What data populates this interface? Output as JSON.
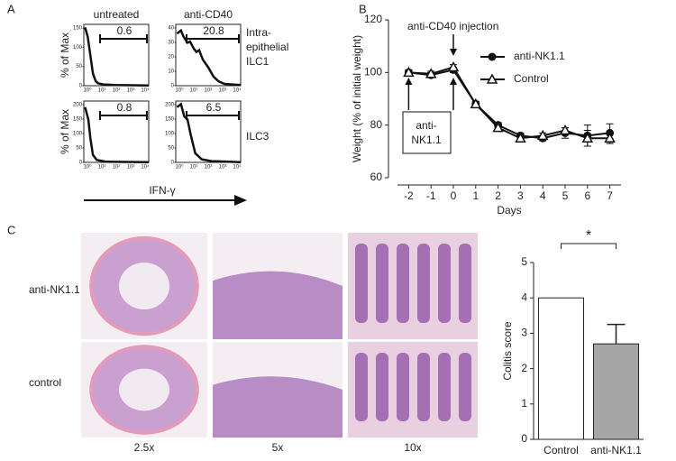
{
  "panel_labels": [
    "A",
    "B",
    "C"
  ],
  "panel_a": {
    "columns": [
      "untreated",
      "anti-CD40"
    ],
    "rows": [
      [
        "Intra-",
        "epithelial",
        "ILC1"
      ],
      [
        "ILC3"
      ]
    ],
    "y_label": "% of Max",
    "x_label": "IFN-γ",
    "gates": [
      [
        0.6,
        20.8
      ],
      [
        0.8,
        6.5
      ]
    ],
    "yticks": [
      [
        [
          0,
          50,
          100,
          150
        ],
        [
          0,
          10,
          20,
          30,
          40
        ]
      ],
      [
        [
          0,
          50,
          100,
          150,
          200
        ],
        [
          0,
          50,
          100,
          150,
          200
        ]
      ]
    ],
    "xticks": [
      "10⁰",
      "10¹",
      "10²",
      "10³",
      "10⁴"
    ]
  },
  "panel_c": {
    "rows": [
      "anti-NK1.1",
      "control"
    ],
    "magnifications": [
      "2.5x",
      "5x",
      "10x"
    ]
  },
  "chart_data": [
    {
      "type": "line",
      "x_label": "Days",
      "y_label": "Weight (% of initial weight)",
      "annotations": [
        "anti-CD40 injection",
        [
          "anti-",
          "NK1.1"
        ]
      ],
      "x": [
        -2,
        -1,
        0,
        1,
        2,
        3,
        4,
        5,
        6,
        7
      ],
      "series": [
        {
          "name": "anti-NK1.1",
          "color": "#111111",
          "marker": "circle",
          "values": [
            100,
            99,
            101,
            88,
            80,
            76,
            75,
            77,
            76,
            77
          ],
          "errors": [
            1,
            1,
            1,
            1,
            1,
            1,
            1,
            2,
            4,
            3.5
          ]
        },
        {
          "name": "Control",
          "color": "#111111",
          "marker": "open-triangle",
          "values": [
            100,
            99.5,
            102,
            88,
            79,
            75,
            76,
            78,
            75,
            75
          ],
          "errors": [
            1,
            1,
            1,
            1,
            1,
            1,
            1,
            1,
            3,
            2
          ]
        }
      ],
      "xlim": [
        -2.5,
        7.5
      ],
      "xticks": [
        -2,
        -1,
        0,
        1,
        2,
        3,
        4,
        5,
        6,
        7
      ],
      "ylim": [
        60,
        120
      ],
      "yticks": [
        60,
        80,
        100,
        120
      ],
      "legend": "upper right"
    },
    {
      "type": "bar",
      "y_label": "Colitis score",
      "annotations": [
        "*"
      ],
      "categories": [
        "Control",
        "anti-NK1.1"
      ],
      "values": [
        4.0,
        2.7
      ],
      "errors": [
        0,
        0.55
      ],
      "colors": [
        "#ffffff",
        "#a6a6a6"
      ],
      "ylim": [
        0,
        5
      ],
      "yticks": [
        0,
        1,
        2,
        3,
        4,
        5
      ]
    }
  ]
}
